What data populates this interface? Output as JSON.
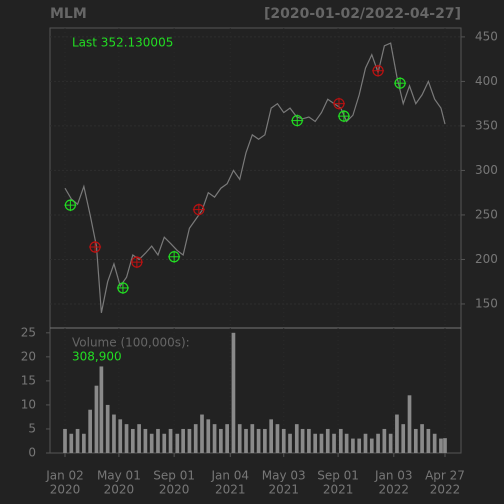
{
  "chart_data": {
    "type": "line",
    "title": "MLM",
    "range_label": "[2020-01-02/2022-04-27]",
    "last_label": "Last 352.130005",
    "volume_title": "Volume (100,000s):",
    "volume_label": "308,900",
    "x": [
      "2020-01-02",
      "2020-01-16",
      "2020-01-30",
      "2020-02-13",
      "2020-02-27",
      "2020-03-12",
      "2020-03-23",
      "2020-04-06",
      "2020-04-20",
      "2020-05-04",
      "2020-05-18",
      "2020-06-01",
      "2020-06-15",
      "2020-06-29",
      "2020-07-13",
      "2020-07-27",
      "2020-08-10",
      "2020-08-24",
      "2020-09-08",
      "2020-09-21",
      "2020-10-05",
      "2020-10-19",
      "2020-11-02",
      "2020-11-16",
      "2020-11-30",
      "2020-12-14",
      "2020-12-28",
      "2021-01-11",
      "2021-01-25",
      "2021-02-08",
      "2021-02-22",
      "2021-03-08",
      "2021-03-22",
      "2021-04-05",
      "2021-04-19",
      "2021-05-03",
      "2021-05-17",
      "2021-06-01",
      "2021-06-14",
      "2021-06-28",
      "2021-07-12",
      "2021-07-26",
      "2021-08-09",
      "2021-08-23",
      "2021-09-07",
      "2021-09-20",
      "2021-10-04",
      "2021-10-18",
      "2021-11-01",
      "2021-11-15",
      "2021-11-29",
      "2021-12-13",
      "2021-12-27",
      "2022-01-10",
      "2022-01-24",
      "2022-02-07",
      "2022-02-21",
      "2022-03-07",
      "2022-03-21",
      "2022-04-04",
      "2022-04-18",
      "2022-04-27"
    ],
    "values": [
      280,
      268,
      262,
      282,
      250,
      215,
      140,
      175,
      195,
      170,
      180,
      205,
      200,
      207,
      215,
      205,
      225,
      218,
      210,
      205,
      235,
      245,
      255,
      275,
      270,
      280,
      285,
      300,
      290,
      320,
      340,
      335,
      340,
      370,
      375,
      365,
      370,
      360,
      358,
      360,
      355,
      365,
      380,
      375,
      370,
      355,
      362,
      385,
      415,
      430,
      410,
      440,
      443,
      405,
      375,
      395,
      375,
      385,
      400,
      380,
      370,
      352.13
    ],
    "color": "#7a7a7a",
    "volume": [
      5,
      4,
      5,
      4,
      9,
      14,
      18,
      10,
      8,
      7,
      6,
      5,
      6,
      5,
      4,
      5,
      4,
      5,
      4,
      5,
      5,
      6,
      8,
      7,
      6,
      5,
      6,
      25,
      6,
      5,
      6,
      5,
      5,
      7,
      6,
      5,
      4,
      6,
      5,
      5,
      4,
      4,
      5,
      4,
      5,
      4,
      3,
      3,
      4,
      3,
      4,
      5,
      4,
      8,
      6,
      12,
      5,
      6,
      5,
      4,
      3,
      3.089
    ],
    "volume_color": "#8a8a8a",
    "markers": [
      {
        "color": "#22dd22",
        "x": [
          "2020-01-14",
          "2020-05-10",
          "2020-09-01",
          "2021-06-02",
          "2021-09-14",
          "2022-01-17"
        ],
        "values": [
          261,
          168,
          203,
          356,
          361,
          398
        ]
      },
      {
        "color": "#bb1111",
        "x": [
          "2020-03-09",
          "2020-06-10",
          "2020-10-26",
          "2021-09-03",
          "2021-11-29"
        ],
        "values": [
          214,
          197,
          256,
          375,
          412
        ]
      }
    ],
    "xlim": [
      "2020-01-02",
      "2022-04-27"
    ],
    "xticks": [
      {
        "value": "2020-01-02",
        "label": [
          "Jan 02",
          "2020"
        ]
      },
      {
        "value": "2020-05-01",
        "label": [
          "May 01",
          "2020"
        ]
      },
      {
        "value": "2020-09-01",
        "label": [
          "Sep 01",
          "2020"
        ]
      },
      {
        "value": "2021-01-04",
        "label": [
          "Jan 04",
          "2021"
        ]
      },
      {
        "value": "2021-05-03",
        "label": [
          "May 03",
          "2021"
        ]
      },
      {
        "value": "2021-09-01",
        "label": [
          "Sep 01",
          "2021"
        ]
      },
      {
        "value": "2022-01-03",
        "label": [
          "Jan 03",
          "2022"
        ]
      },
      {
        "value": "2022-04-27",
        "label": [
          "Apr 27",
          "2022"
        ]
      }
    ],
    "ylim": [
      123,
      460
    ],
    "yticks": [
      150,
      200,
      250,
      300,
      350,
      400,
      450
    ],
    "y2lim": [
      0,
      26
    ],
    "y2ticks": [
      0,
      5,
      10,
      15,
      20,
      25
    ],
    "grid": true
  }
}
